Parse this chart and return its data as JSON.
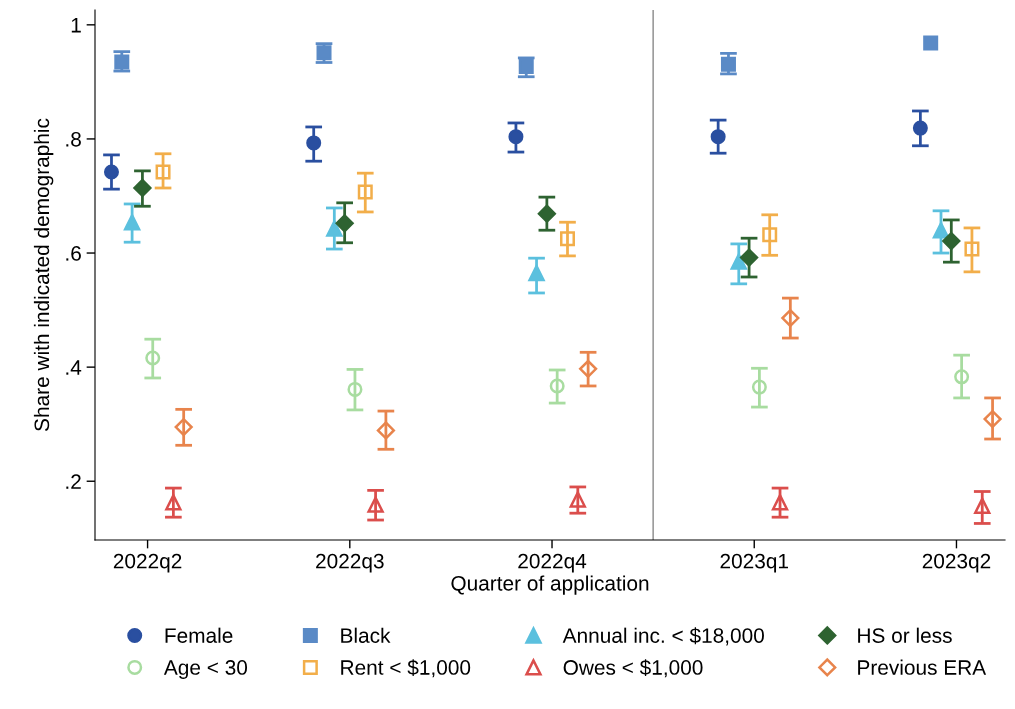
{
  "chart_data": {
    "type": "scatter",
    "xlabel": "Quarter of application",
    "ylabel": "Share with indicated demographic",
    "categories": [
      "2022q2",
      "2022q3",
      "2022q4",
      "2023q1",
      "2023q2"
    ],
    "ylim": [
      0.097,
      1.026
    ],
    "yticks": [
      {
        "value": 0.2,
        "label": ".2"
      },
      {
        "value": 0.4,
        "label": ".4"
      },
      {
        "value": 0.6,
        "label": ".6"
      },
      {
        "value": 0.8,
        "label": ".8"
      },
      {
        "value": 1,
        "label": "1"
      }
    ],
    "grid": false,
    "legend": "bottom",
    "series": [
      {
        "name": "Female",
        "color": "#2a4fa0",
        "marker": "circle",
        "values": [
          0.742,
          0.793,
          0.804,
          0.804,
          0.819
        ],
        "errors": [
          [
            0.712,
            0.772
          ],
          [
            0.761,
            0.821
          ],
          [
            0.777,
            0.828
          ],
          [
            0.775,
            0.833
          ],
          [
            0.788,
            0.849
          ]
        ]
      },
      {
        "name": "Black",
        "color": "#5a8ac6",
        "marker": "square",
        "values": [
          0.935,
          0.951,
          0.927,
          0.931,
          0.968
        ],
        "errors": [
          [
            0.919,
            0.953
          ],
          [
            0.934,
            0.967
          ],
          [
            0.909,
            0.942
          ],
          [
            0.914,
            0.95
          ],
          null
        ]
      },
      {
        "name": "Annual inc. < $18,000",
        "color": "#5bc0de",
        "marker": "triangle",
        "values": [
          0.654,
          0.643,
          0.565,
          0.585,
          0.64
        ],
        "errors": [
          [
            0.619,
            0.686
          ],
          [
            0.607,
            0.679
          ],
          [
            0.53,
            0.591
          ],
          [
            0.546,
            0.616
          ],
          [
            0.6,
            0.674
          ]
        ]
      },
      {
        "name": "HS or less",
        "color": "#2e6331",
        "marker": "diamond",
        "values": [
          0.714,
          0.652,
          0.669,
          0.592,
          0.621
        ],
        "errors": [
          [
            0.682,
            0.744
          ],
          [
            0.618,
            0.688
          ],
          [
            0.64,
            0.698
          ],
          [
            0.558,
            0.626
          ],
          [
            0.584,
            0.658
          ]
        ]
      },
      {
        "name": "Age < 30",
        "color": "#a8dca0",
        "marker": "circle_open",
        "values": [
          0.416,
          0.361,
          0.367,
          0.365,
          0.383
        ],
        "errors": [
          [
            0.381,
            0.449
          ],
          [
            0.325,
            0.396
          ],
          [
            0.337,
            0.395
          ],
          [
            0.33,
            0.398
          ],
          [
            0.346,
            0.421
          ]
        ]
      },
      {
        "name": "Rent < $1,000",
        "color": "#f2ae4a",
        "marker": "square_open",
        "values": [
          0.742,
          0.707,
          0.625,
          0.632,
          0.607
        ],
        "errors": [
          [
            0.714,
            0.774
          ],
          [
            0.672,
            0.74
          ],
          [
            0.595,
            0.654
          ],
          [
            0.596,
            0.667
          ],
          [
            0.567,
            0.644
          ]
        ]
      },
      {
        "name": "Owes < $1,000",
        "color": "#db4e4c",
        "marker": "triangle_open",
        "values": [
          0.163,
          0.159,
          0.168,
          0.163,
          0.157
        ],
        "errors": [
          [
            0.137,
            0.188
          ],
          [
            0.132,
            0.184
          ],
          [
            0.144,
            0.19
          ],
          [
            0.137,
            0.188
          ],
          [
            0.126,
            0.182
          ]
        ]
      },
      {
        "name": "Previous ERA",
        "color": "#e8844c",
        "marker": "diamond_open",
        "values": [
          0.295,
          0.289,
          0.397,
          0.486,
          0.309
        ],
        "errors": [
          [
            0.263,
            0.326
          ],
          [
            0.256,
            0.323
          ],
          [
            0.367,
            0.426
          ],
          [
            0.451,
            0.521
          ],
          [
            0.274,
            0.346
          ]
        ]
      }
    ]
  }
}
